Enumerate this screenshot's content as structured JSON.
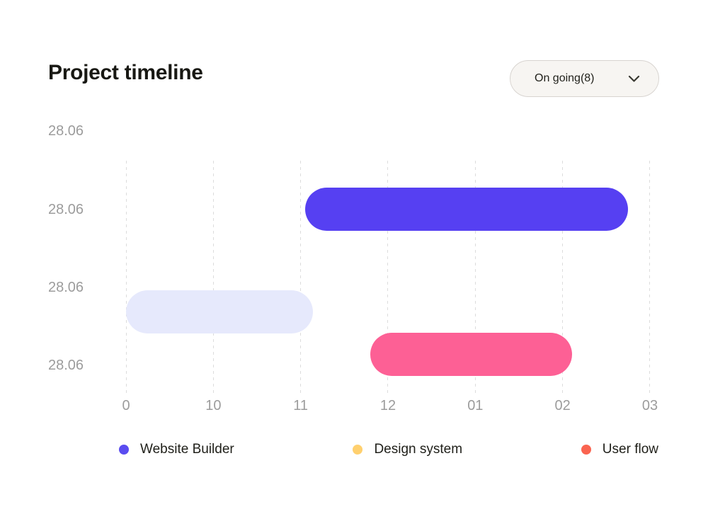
{
  "page": {
    "background": "#ffffff"
  },
  "header": {
    "title": "Project timeline",
    "filter": {
      "label": "On going(8)",
      "icon": "chevron-down-icon"
    }
  },
  "chart_data": {
    "type": "gantt",
    "title": "Project timeline",
    "x_tick_labels": [
      "0",
      "10",
      "11",
      "12",
      "01",
      "02",
      "03"
    ],
    "row_labels": [
      "28.06",
      "28.06",
      "28.06",
      "28.06"
    ],
    "grid": "vertical-dashed",
    "axis_note": "bar start/end are fractional x-tick indices, 0 = tick '0', 6 = tick '03'",
    "bars": [
      {
        "row_index": 1,
        "start": 2.05,
        "end": 5.75,
        "color": "#5640f2",
        "series": "Website Builder"
      },
      {
        "row_index": 2,
        "start": 0.0,
        "end": 2.14,
        "color": "#e6e9fc",
        "series": null
      },
      {
        "row_index": 3,
        "start": 2.8,
        "end": 5.11,
        "color": "#fd6095",
        "series": "User flow"
      }
    ],
    "legend_position": "bottom",
    "legend": [
      {
        "label": "Website Builder",
        "color": "#5a4cf0"
      },
      {
        "label": "Design system",
        "color": "#ffd06e"
      },
      {
        "label": "User flow",
        "color": "#fa6450"
      }
    ]
  },
  "colors": {
    "title_text": "#181813",
    "axis_text": "#9c9c9c",
    "gridline": "#dcdcdc",
    "pill_background": "#f7f5f2",
    "pill_border": "#d8d4d0"
  }
}
